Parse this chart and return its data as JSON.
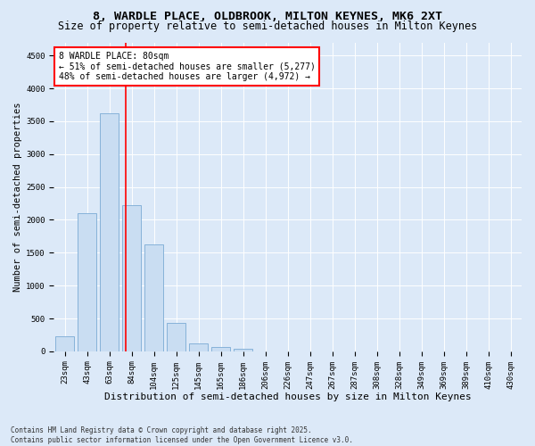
{
  "title1": "8, WARDLE PLACE, OLDBROOK, MILTON KEYNES, MK6 2XT",
  "title2": "Size of property relative to semi-detached houses in Milton Keynes",
  "xlabel": "Distribution of semi-detached houses by size in Milton Keynes",
  "ylabel": "Number of semi-detached properties",
  "categories": [
    "23sqm",
    "43sqm",
    "63sqm",
    "84sqm",
    "104sqm",
    "125sqm",
    "145sqm",
    "165sqm",
    "186sqm",
    "206sqm",
    "226sqm",
    "247sqm",
    "267sqm",
    "287sqm",
    "308sqm",
    "328sqm",
    "349sqm",
    "369sqm",
    "389sqm",
    "410sqm",
    "430sqm"
  ],
  "values": [
    230,
    2100,
    3620,
    2220,
    1620,
    430,
    115,
    70,
    40,
    0,
    0,
    0,
    0,
    0,
    0,
    0,
    0,
    0,
    0,
    0,
    0
  ],
  "bar_color": "#c9ddf2",
  "bar_edge_color": "#7aaad4",
  "vline_color": "red",
  "vline_x": 2.72,
  "annotation_title": "8 WARDLE PLACE: 80sqm",
  "annotation_line1": "← 51% of semi-detached houses are smaller (5,277)",
  "annotation_line2": "48% of semi-detached houses are larger (4,972) →",
  "annotation_box_color": "red",
  "annotation_box_facecolor": "white",
  "ylim": [
    0,
    4700
  ],
  "yticks": [
    0,
    500,
    1000,
    1500,
    2000,
    2500,
    3000,
    3500,
    4000,
    4500
  ],
  "bg_color": "#dce9f8",
  "plot_bg_color": "#dce9f8",
  "footer": "Contains HM Land Registry data © Crown copyright and database right 2025.\nContains public sector information licensed under the Open Government Licence v3.0.",
  "title1_fontsize": 9.5,
  "title2_fontsize": 8.5,
  "xlabel_fontsize": 8,
  "ylabel_fontsize": 7.5,
  "tick_fontsize": 6.5,
  "annotation_fontsize": 7,
  "footer_fontsize": 5.5
}
